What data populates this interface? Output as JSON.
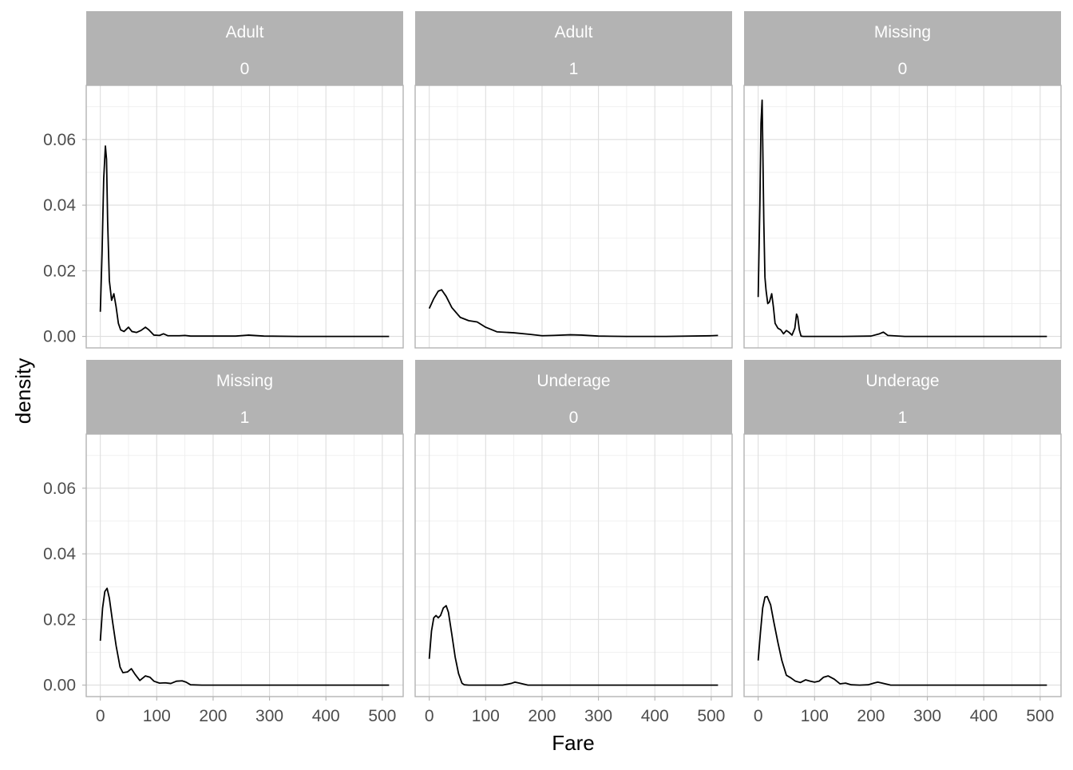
{
  "chart_data": {
    "type": "line",
    "facet_layout": "wrap-2x3",
    "xlabel": "Fare",
    "ylabel": "density",
    "xlim": [
      -25,
      537
    ],
    "ylim": [
      -0.0035,
      0.0765
    ],
    "x_ticks": [
      0,
      100,
      200,
      300,
      400,
      500
    ],
    "y_ticks": [
      0.0,
      0.02,
      0.04,
      0.06
    ],
    "y_tick_labels": [
      "0.00",
      "0.02",
      "0.04",
      "0.06"
    ],
    "grid": true,
    "colors": {
      "strip": "#b3b3b3",
      "strip_text": "#ffffff",
      "line": "#000000",
      "grid": "#dedede",
      "border": "#b3b3b3",
      "tick_label": "#4d4d4d"
    },
    "panels": [
      {
        "strip": [
          "Adult",
          "0"
        ],
        "x": [
          0,
          3,
          6,
          9,
          11,
          13,
          16,
          20,
          24,
          28,
          32,
          36,
          42,
          50,
          56,
          64,
          72,
          80,
          86,
          95,
          105,
          112,
          120,
          130,
          140,
          150,
          160,
          180,
          210,
          240,
          262,
          290,
          350,
          420,
          512
        ],
        "y": [
          0.0075,
          0.025,
          0.048,
          0.058,
          0.054,
          0.035,
          0.017,
          0.011,
          0.013,
          0.009,
          0.004,
          0.002,
          0.0015,
          0.0028,
          0.0015,
          0.0012,
          0.0018,
          0.0028,
          0.002,
          0.0004,
          0.0003,
          0.0008,
          0.0002,
          0.0002,
          0.0002,
          0.0003,
          0.0001,
          0.0001,
          0.0001,
          0.0001,
          0.0004,
          0.0001,
          0.0,
          0.0,
          0.0
        ]
      },
      {
        "strip": [
          "Adult",
          "1"
        ],
        "x": [
          0,
          8,
          16,
          22,
          30,
          40,
          55,
          70,
          85,
          100,
          120,
          150,
          180,
          200,
          220,
          250,
          270,
          300,
          350,
          420,
          500,
          512
        ],
        "y": [
          0.0085,
          0.0115,
          0.0138,
          0.0142,
          0.0122,
          0.0088,
          0.0058,
          0.0048,
          0.0044,
          0.0028,
          0.0014,
          0.0011,
          0.0006,
          0.0002,
          0.0003,
          0.0005,
          0.0004,
          0.0001,
          0.0,
          0.0,
          0.0002,
          0.0003
        ]
      },
      {
        "strip": [
          "Missing",
          "0"
        ],
        "x": [
          0,
          3,
          5,
          7,
          8,
          10,
          12,
          14,
          17,
          20,
          24,
          27,
          30,
          35,
          40,
          45,
          50,
          55,
          60,
          65,
          68,
          70,
          73,
          76,
          80,
          100,
          150,
          200,
          215,
          222,
          230,
          260,
          350,
          420,
          512
        ],
        "y": [
          0.012,
          0.04,
          0.065,
          0.072,
          0.06,
          0.035,
          0.018,
          0.014,
          0.01,
          0.0105,
          0.013,
          0.009,
          0.004,
          0.0025,
          0.002,
          0.0008,
          0.0018,
          0.0012,
          0.0004,
          0.0025,
          0.0068,
          0.006,
          0.002,
          0.0001,
          0.0,
          0.0,
          0.0,
          0.0001,
          0.0008,
          0.0013,
          0.0003,
          0.0,
          0.0,
          0.0,
          0.0
        ]
      },
      {
        "strip": [
          "Missing",
          "1"
        ],
        "x": [
          0,
          4,
          8,
          12,
          16,
          22,
          28,
          35,
          40,
          48,
          55,
          62,
          70,
          80,
          88,
          95,
          105,
          115,
          125,
          135,
          145,
          152,
          160,
          180,
          230,
          300,
          400,
          512
        ],
        "y": [
          0.0135,
          0.0235,
          0.0285,
          0.0295,
          0.0265,
          0.019,
          0.012,
          0.0055,
          0.0038,
          0.004,
          0.005,
          0.0032,
          0.0014,
          0.0028,
          0.0024,
          0.0012,
          0.0006,
          0.0007,
          0.0005,
          0.0012,
          0.0013,
          0.0009,
          0.0001,
          0.0,
          0.0,
          0.0,
          0.0,
          0.0
        ]
      },
      {
        "strip": [
          "Underage",
          "0"
        ],
        "x": [
          0,
          4,
          8,
          12,
          16,
          20,
          25,
          30,
          34,
          40,
          46,
          52,
          58,
          62,
          70,
          100,
          130,
          145,
          152,
          160,
          175,
          230,
          300,
          400,
          512
        ],
        "y": [
          0.008,
          0.0165,
          0.0205,
          0.0212,
          0.0205,
          0.0212,
          0.0235,
          0.0242,
          0.0222,
          0.0155,
          0.0085,
          0.0035,
          0.0006,
          0.0001,
          0.0,
          0.0,
          0.0,
          0.0005,
          0.0009,
          0.0006,
          0.0,
          0.0,
          0.0,
          0.0,
          0.0
        ]
      },
      {
        "strip": [
          "Underage",
          "1"
        ],
        "x": [
          0,
          4,
          8,
          12,
          16,
          22,
          28,
          35,
          42,
          50,
          58,
          66,
          75,
          84,
          92,
          100,
          108,
          116,
          124,
          135,
          145,
          155,
          165,
          180,
          195,
          205,
          212,
          220,
          235,
          260,
          330,
          420,
          512
        ],
        "y": [
          0.0075,
          0.016,
          0.0235,
          0.0268,
          0.027,
          0.0245,
          0.019,
          0.013,
          0.0075,
          0.003,
          0.0022,
          0.0012,
          0.0008,
          0.0016,
          0.0012,
          0.0009,
          0.0012,
          0.0024,
          0.0028,
          0.0018,
          0.0004,
          0.0006,
          0.0001,
          0.0,
          0.0001,
          0.0006,
          0.0009,
          0.0006,
          0.0,
          0.0,
          0.0,
          0.0,
          0.0
        ]
      }
    ]
  }
}
